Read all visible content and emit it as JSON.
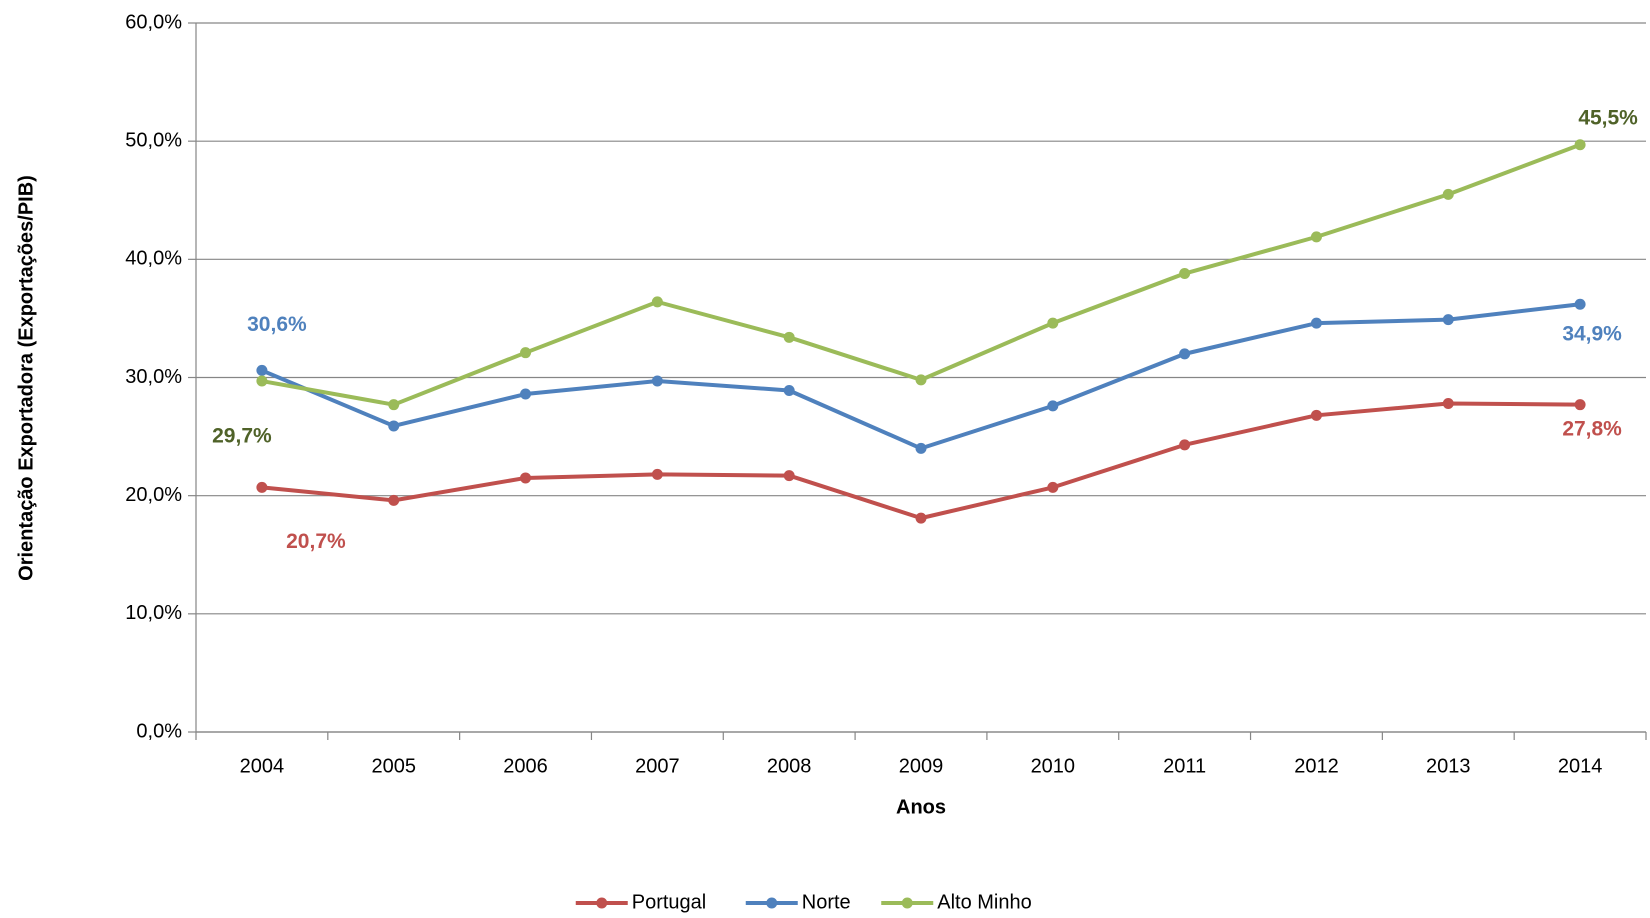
{
  "chart_data": {
    "type": "line",
    "x_label": "Anos",
    "y_label": "Orientação Exportadora (Exportações/PIB)",
    "categories": [
      "2004",
      "2005",
      "2006",
      "2007",
      "2008",
      "2009",
      "2010",
      "2011",
      "2012",
      "2013",
      "2014"
    ],
    "series": [
      {
        "name": "Portugal",
        "color": "#c0504d",
        "label_color": "#c0504d",
        "values": [
          20.7,
          19.6,
          21.5,
          21.8,
          21.7,
          18.1,
          20.7,
          24.3,
          26.8,
          27.8,
          27.7
        ],
        "value_labels": [
          "20,7%",
          null,
          null,
          null,
          null,
          null,
          null,
          null,
          null,
          "27,8%",
          null
        ]
      },
      {
        "name": "Norte",
        "color": "#4f81bd",
        "label_color": "#4f81bd",
        "values": [
          30.6,
          25.9,
          28.6,
          29.7,
          28.9,
          24.0,
          27.6,
          32.0,
          34.6,
          34.9,
          36.2
        ],
        "value_labels": [
          "30,6%",
          null,
          null,
          null,
          null,
          null,
          null,
          null,
          null,
          "34,9%",
          null
        ]
      },
      {
        "name": "Alto Minho",
        "color": "#9bbb59",
        "label_color": "#4f6228",
        "values": [
          29.7,
          27.7,
          32.1,
          36.4,
          33.4,
          29.8,
          34.6,
          38.8,
          41.9,
          45.5,
          49.7
        ],
        "value_labels": [
          "29,7%",
          null,
          null,
          null,
          null,
          null,
          null,
          null,
          null,
          "45,5%",
          null
        ]
      }
    ],
    "ylim": [
      0,
      60
    ],
    "yticks": [
      {
        "value": 0,
        "label": "0,0%"
      },
      {
        "value": 10,
        "label": "10,0%"
      },
      {
        "value": 20,
        "label": "20,0%"
      },
      {
        "value": 30,
        "label": "30,0%"
      },
      {
        "value": 40,
        "label": "40,0%"
      },
      {
        "value": 50,
        "label": "50,0%"
      },
      {
        "value": 60,
        "label": "60,0%"
      }
    ],
    "grid": true,
    "legend": "bottom"
  }
}
